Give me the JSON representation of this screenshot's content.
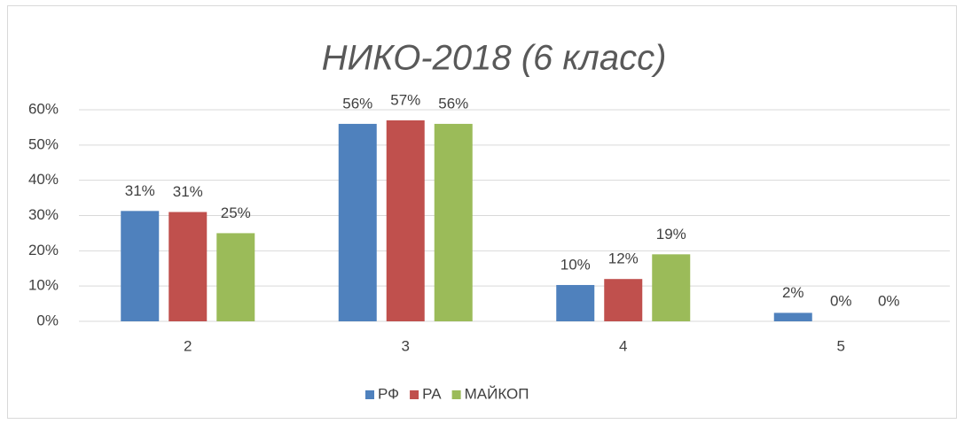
{
  "chart_data": {
    "type": "bar",
    "title": "НИКО-2018 (6 класс)",
    "categories": [
      "2",
      "3",
      "4",
      "5"
    ],
    "series": [
      {
        "name": "РФ",
        "color": "#4f81bd",
        "values": [
          31.3,
          56,
          10.3,
          2.4
        ],
        "value_labels": [
          "31%",
          "56%",
          "10%",
          "2%"
        ]
      },
      {
        "name": "РА",
        "color": "#c0504d",
        "values": [
          31,
          57,
          12,
          0
        ],
        "value_labels": [
          "31%",
          "57%",
          "12%",
          "0%"
        ]
      },
      {
        "name": "МАЙКОП",
        "color": "#9bbb59",
        "values": [
          25,
          56,
          19,
          0
        ],
        "value_labels": [
          "25%",
          "56%",
          "19%",
          "0%"
        ]
      }
    ],
    "ylim": [
      0,
      60
    ],
    "yticks": [
      {
        "value": 0,
        "label": "0%"
      },
      {
        "value": 10,
        "label": "10%"
      },
      {
        "value": 20,
        "label": "20%"
      },
      {
        "value": 30,
        "label": "30%"
      },
      {
        "value": 40,
        "label": "40%"
      },
      {
        "value": 50,
        "label": "50%"
      },
      {
        "value": 60,
        "label": "60%"
      }
    ],
    "grid": true,
    "legend": "bottom"
  }
}
